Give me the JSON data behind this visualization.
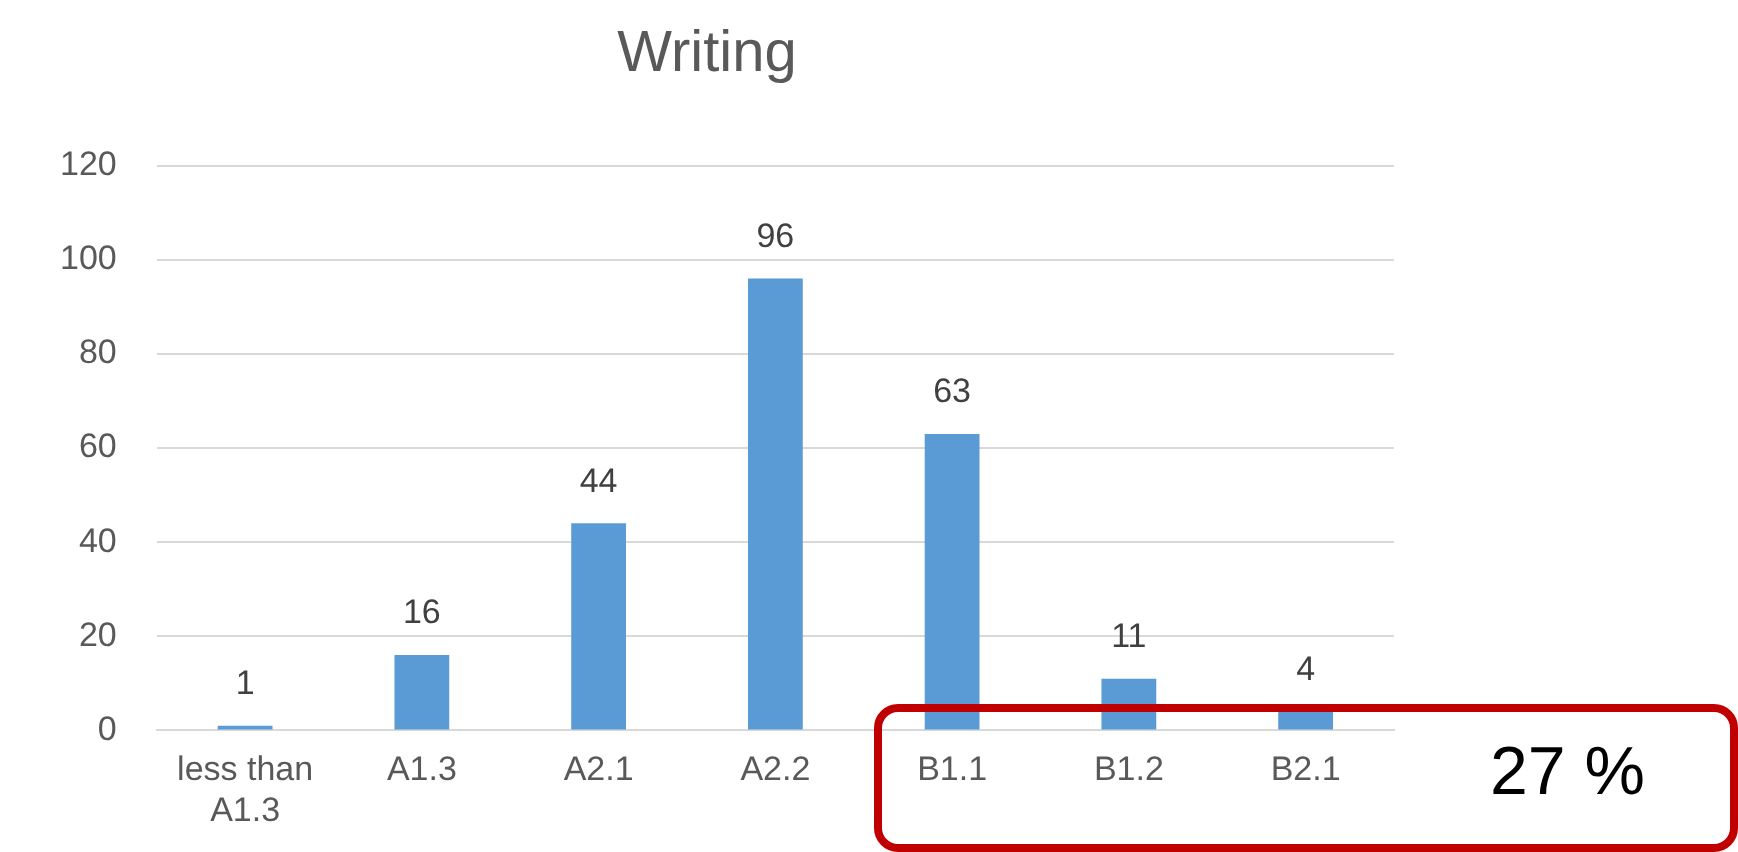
{
  "chart_data": {
    "type": "bar",
    "title": "Writing",
    "categories": [
      "less than A1.3",
      "A1.3",
      "A2.1",
      "A2.2",
      "B1.1",
      "B1.2",
      "B2.1"
    ],
    "values": [
      1,
      16,
      44,
      96,
      63,
      11,
      4
    ],
    "color": "#5b9bd5",
    "ylim": [
      0,
      120
    ],
    "yticks": [
      0,
      20,
      40,
      60,
      80,
      100,
      120
    ],
    "grid": "y",
    "legend": false,
    "data_labels": true,
    "annotations": [
      "27 %"
    ]
  }
}
